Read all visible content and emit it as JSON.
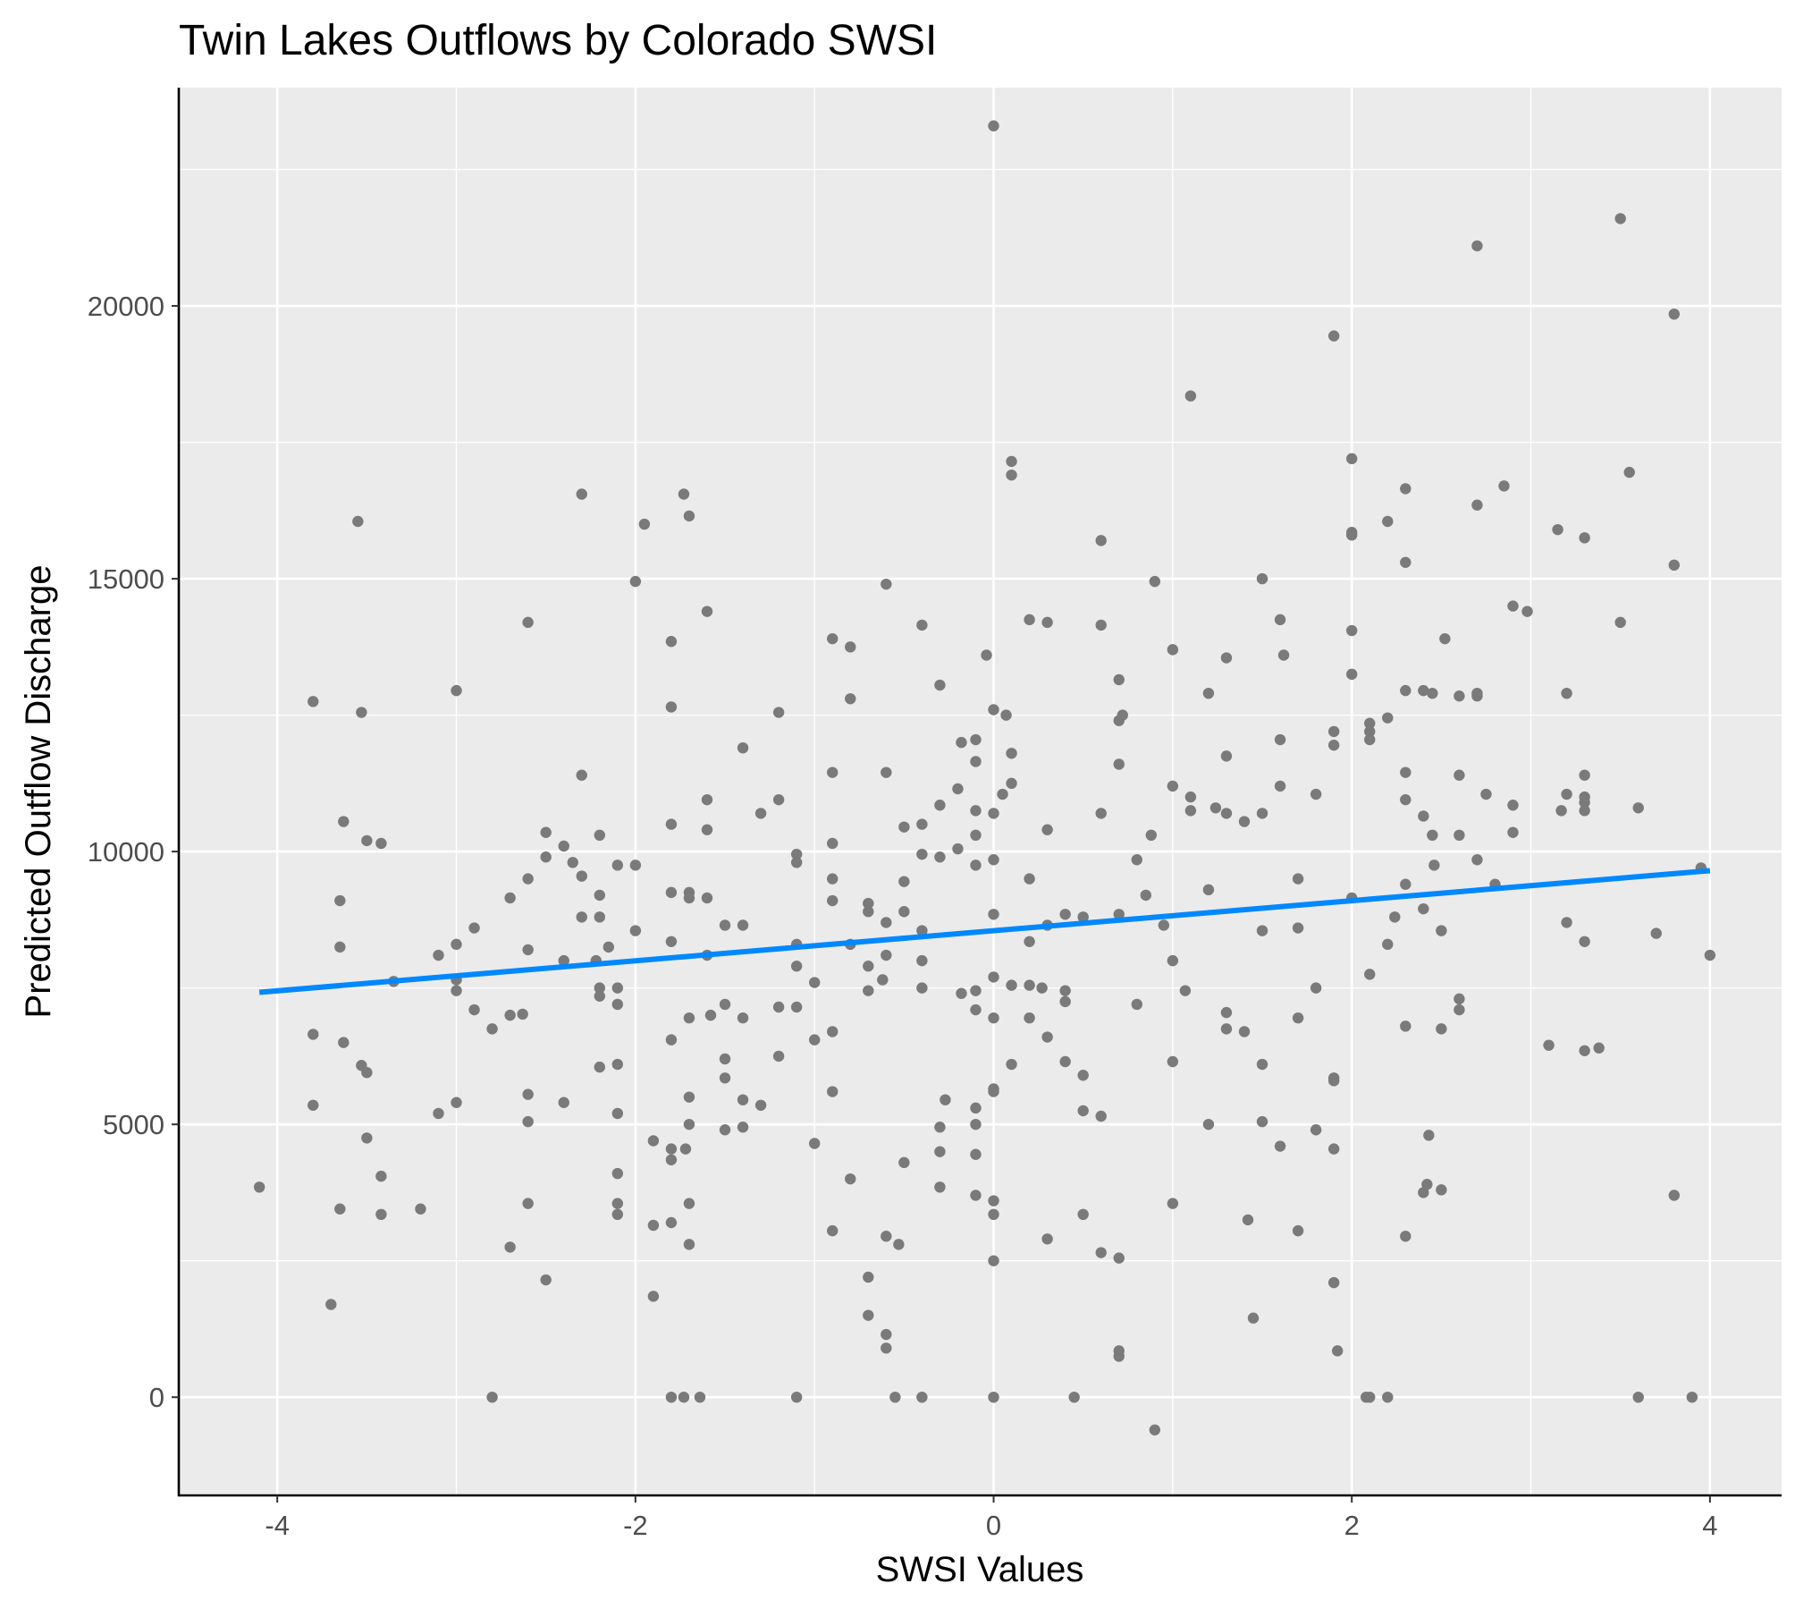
{
  "chart_data": {
    "type": "scatter",
    "title": "Twin Lakes Outflows by Colorado SWSI",
    "xlabel": "SWSI Values",
    "ylabel": "Predicted Outflow Discharge",
    "xlim": [
      -4.55,
      4.4
    ],
    "ylim": [
      -1800,
      24000
    ],
    "x_ticks": [
      -4,
      -2,
      0,
      2,
      4
    ],
    "y_ticks": [
      0,
      5000,
      10000,
      15000,
      20000
    ],
    "grid": true,
    "legend": "none",
    "colors": {
      "points": "#7a7a7a",
      "fit_line": "#0088ff",
      "panel": "#ebebeb",
      "grid": "#ffffff"
    },
    "fit_line": {
      "x": [
        -4.1,
        4.0
      ],
      "y": [
        7420,
        9650
      ]
    },
    "points": [
      [
        -4.1,
        3850
      ],
      [
        -3.8,
        12750
      ],
      [
        -3.8,
        6650
      ],
      [
        -3.8,
        5350
      ],
      [
        -3.7,
        1700
      ],
      [
        -3.65,
        9100
      ],
      [
        -3.65,
        8250
      ],
      [
        -3.63,
        6500
      ],
      [
        -3.65,
        3450
      ],
      [
        -3.55,
        16050
      ],
      [
        -3.53,
        12550
      ],
      [
        -3.53,
        6080
      ],
      [
        -3.5,
        5950
      ],
      [
        -3.5,
        4750
      ],
      [
        -3.5,
        10200
      ],
      [
        -3.63,
        10550
      ],
      [
        -3.42,
        10150
      ],
      [
        -3.42,
        4050
      ],
      [
        -3.42,
        3350
      ],
      [
        -3.35,
        7620
      ],
      [
        -3.2,
        3450
      ],
      [
        -3.1,
        8100
      ],
      [
        -3.1,
        5200
      ],
      [
        -3.0,
        12950
      ],
      [
        -3.0,
        8300
      ],
      [
        -3.0,
        7650
      ],
      [
        -3.0,
        7450
      ],
      [
        -3.0,
        5400
      ],
      [
        -2.9,
        7100
      ],
      [
        -2.9,
        8600
      ],
      [
        -2.8,
        6750
      ],
      [
        -2.8,
        0
      ],
      [
        -2.7,
        7000
      ],
      [
        -2.7,
        9150
      ],
      [
        -2.7,
        2750
      ],
      [
        -2.63,
        7020
      ],
      [
        -2.6,
        14200
      ],
      [
        -2.6,
        9500
      ],
      [
        -2.6,
        8200
      ],
      [
        -2.6,
        5550
      ],
      [
        -2.6,
        5050
      ],
      [
        -2.6,
        3550
      ],
      [
        -2.5,
        10350
      ],
      [
        -2.5,
        9900
      ],
      [
        -2.5,
        2150
      ],
      [
        -2.4,
        10100
      ],
      [
        -2.4,
        8000
      ],
      [
        -2.4,
        5400
      ],
      [
        -2.35,
        9800
      ],
      [
        -2.3,
        16550
      ],
      [
        -2.3,
        11400
      ],
      [
        -2.3,
        9550
      ],
      [
        -2.3,
        8800
      ],
      [
        -2.22,
        8000
      ],
      [
        -2.2,
        10300
      ],
      [
        -2.2,
        9200
      ],
      [
        -2.2,
        8800
      ],
      [
        -2.2,
        7500
      ],
      [
        -2.2,
        7350
      ],
      [
        -2.2,
        6050
      ],
      [
        -2.15,
        8250
      ],
      [
        -2.1,
        9750
      ],
      [
        -2.1,
        7500
      ],
      [
        -2.1,
        7200
      ],
      [
        -2.1,
        6100
      ],
      [
        -2.1,
        5200
      ],
      [
        -2.1,
        4100
      ],
      [
        -2.1,
        3550
      ],
      [
        -2.1,
        3350
      ],
      [
        -2.0,
        9750
      ],
      [
        -2.0,
        8550
      ],
      [
        -2.0,
        14950
      ],
      [
        -1.95,
        16000
      ],
      [
        -1.9,
        4700
      ],
      [
        -1.9,
        3150
      ],
      [
        -1.9,
        1850
      ],
      [
        -1.8,
        13850
      ],
      [
        -1.8,
        12650
      ],
      [
        -1.8,
        10500
      ],
      [
        -1.8,
        9250
      ],
      [
        -1.8,
        8350
      ],
      [
        -1.8,
        6550
      ],
      [
        -1.8,
        4550
      ],
      [
        -1.8,
        4350
      ],
      [
        -1.8,
        3200
      ],
      [
        -1.8,
        0
      ],
      [
        -1.73,
        16550
      ],
      [
        -1.73,
        0
      ],
      [
        -1.7,
        16150
      ],
      [
        -1.7,
        9250
      ],
      [
        -1.7,
        9150
      ],
      [
        -1.7,
        6950
      ],
      [
        -1.7,
        5500
      ],
      [
        -1.7,
        5000
      ],
      [
        -1.7,
        3550
      ],
      [
        -1.7,
        2800
      ],
      [
        -1.72,
        4550
      ],
      [
        -1.64,
        0
      ],
      [
        -1.6,
        14400
      ],
      [
        -1.6,
        10950
      ],
      [
        -1.6,
        10400
      ],
      [
        -1.6,
        9150
      ],
      [
        -1.6,
        8100
      ],
      [
        -1.58,
        7000
      ],
      [
        -1.5,
        8650
      ],
      [
        -1.5,
        7200
      ],
      [
        -1.5,
        6200
      ],
      [
        -1.5,
        5850
      ],
      [
        -1.5,
        4900
      ],
      [
        -1.4,
        11900
      ],
      [
        -1.4,
        8650
      ],
      [
        -1.4,
        6950
      ],
      [
        -1.4,
        5450
      ],
      [
        -1.4,
        4950
      ],
      [
        -1.3,
        10700
      ],
      [
        -1.3,
        5350
      ],
      [
        -1.2,
        12550
      ],
      [
        -1.2,
        10950
      ],
      [
        -1.2,
        7150
      ],
      [
        -1.2,
        6250
      ],
      [
        -1.1,
        9950
      ],
      [
        -1.1,
        9800
      ],
      [
        -1.1,
        8300
      ],
      [
        -1.1,
        7900
      ],
      [
        -1.1,
        7150
      ],
      [
        -1.1,
        0
      ],
      [
        -1.0,
        7600
      ],
      [
        -1.0,
        6550
      ],
      [
        -1.0,
        4650
      ],
      [
        -0.9,
        13900
      ],
      [
        -0.9,
        11450
      ],
      [
        -0.9,
        10150
      ],
      [
        -0.9,
        9500
      ],
      [
        -0.9,
        9100
      ],
      [
        -0.9,
        6700
      ],
      [
        -0.9,
        5600
      ],
      [
        -0.9,
        3050
      ],
      [
        -0.8,
        13750
      ],
      [
        -0.8,
        12800
      ],
      [
        -0.8,
        8300
      ],
      [
        -0.8,
        4000
      ],
      [
        -0.7,
        9050
      ],
      [
        -0.7,
        8900
      ],
      [
        -0.7,
        7900
      ],
      [
        -0.7,
        7450
      ],
      [
        -0.7,
        2200
      ],
      [
        -0.7,
        1500
      ],
      [
        -0.62,
        7650
      ],
      [
        -0.6,
        14900
      ],
      [
        -0.6,
        11450
      ],
      [
        -0.6,
        8700
      ],
      [
        -0.6,
        8100
      ],
      [
        -0.6,
        2950
      ],
      [
        -0.6,
        1150
      ],
      [
        -0.6,
        900
      ],
      [
        -0.55,
        0
      ],
      [
        -0.53,
        2800
      ],
      [
        -0.5,
        10450
      ],
      [
        -0.5,
        9450
      ],
      [
        -0.5,
        8900
      ],
      [
        -0.5,
        4300
      ],
      [
        -0.4,
        14150
      ],
      [
        -0.4,
        10500
      ],
      [
        -0.4,
        9950
      ],
      [
        -0.4,
        8550
      ],
      [
        -0.4,
        8000
      ],
      [
        -0.4,
        7500
      ],
      [
        -0.4,
        0
      ],
      [
        -0.3,
        13050
      ],
      [
        -0.3,
        10850
      ],
      [
        -0.3,
        9900
      ],
      [
        -0.3,
        4950
      ],
      [
        -0.3,
        4500
      ],
      [
        -0.3,
        3850
      ],
      [
        -0.27,
        5450
      ],
      [
        -0.2,
        11150
      ],
      [
        -0.2,
        10050
      ],
      [
        -0.18,
        7400
      ],
      [
        -0.18,
        12000
      ],
      [
        -0.1,
        12050
      ],
      [
        -0.1,
        11650
      ],
      [
        -0.1,
        10750
      ],
      [
        -0.1,
        10300
      ],
      [
        -0.1,
        9750
      ],
      [
        -0.1,
        7450
      ],
      [
        -0.1,
        7100
      ],
      [
        -0.1,
        5300
      ],
      [
        -0.1,
        5000
      ],
      [
        -0.1,
        4450
      ],
      [
        -0.1,
        3700
      ],
      [
        -0.04,
        13600
      ],
      [
        0.0,
        23300
      ],
      [
        0.0,
        12600
      ],
      [
        0.0,
        10700
      ],
      [
        0.0,
        9850
      ],
      [
        0.0,
        8850
      ],
      [
        0.0,
        7700
      ],
      [
        0.0,
        6950
      ],
      [
        0.0,
        5650
      ],
      [
        0.0,
        5600
      ],
      [
        0.0,
        3600
      ],
      [
        0.0,
        3350
      ],
      [
        0.0,
        2500
      ],
      [
        0.0,
        0
      ],
      [
        0.05,
        11050
      ],
      [
        0.07,
        12500
      ],
      [
        0.1,
        17150
      ],
      [
        0.1,
        16900
      ],
      [
        0.1,
        11800
      ],
      [
        0.1,
        11250
      ],
      [
        0.1,
        7550
      ],
      [
        0.1,
        6100
      ],
      [
        0.2,
        14250
      ],
      [
        0.2,
        9500
      ],
      [
        0.2,
        8350
      ],
      [
        0.2,
        7550
      ],
      [
        0.2,
        6950
      ],
      [
        0.27,
        7500
      ],
      [
        0.3,
        14200
      ],
      [
        0.3,
        10400
      ],
      [
        0.3,
        8650
      ],
      [
        0.3,
        6600
      ],
      [
        0.3,
        2900
      ],
      [
        0.4,
        8850
      ],
      [
        0.4,
        7450
      ],
      [
        0.4,
        7250
      ],
      [
        0.4,
        6150
      ],
      [
        0.45,
        0
      ],
      [
        0.5,
        8800
      ],
      [
        0.5,
        5900
      ],
      [
        0.5,
        5250
      ],
      [
        0.5,
        3350
      ],
      [
        0.6,
        15700
      ],
      [
        0.6,
        14150
      ],
      [
        0.6,
        10700
      ],
      [
        0.6,
        5150
      ],
      [
        0.6,
        2650
      ],
      [
        0.7,
        13150
      ],
      [
        0.7,
        12400
      ],
      [
        0.7,
        11600
      ],
      [
        0.7,
        8850
      ],
      [
        0.7,
        2550
      ],
      [
        0.7,
        850
      ],
      [
        0.7,
        750
      ],
      [
        0.72,
        12500
      ],
      [
        0.8,
        9850
      ],
      [
        0.8,
        7200
      ],
      [
        0.85,
        9200
      ],
      [
        0.88,
        10300
      ],
      [
        0.9,
        14950
      ],
      [
        0.9,
        -600
      ],
      [
        0.95,
        8650
      ],
      [
        1.0,
        13700
      ],
      [
        1.0,
        11200
      ],
      [
        1.0,
        8000
      ],
      [
        1.0,
        6150
      ],
      [
        1.0,
        3550
      ],
      [
        1.07,
        7450
      ],
      [
        1.1,
        18350
      ],
      [
        1.1,
        11000
      ],
      [
        1.1,
        10750
      ],
      [
        1.2,
        12900
      ],
      [
        1.2,
        9300
      ],
      [
        1.2,
        5000
      ],
      [
        1.24,
        10800
      ],
      [
        1.3,
        13550
      ],
      [
        1.3,
        11750
      ],
      [
        1.3,
        10700
      ],
      [
        1.3,
        7050
      ],
      [
        1.3,
        6750
      ],
      [
        1.4,
        10550
      ],
      [
        1.4,
        6700
      ],
      [
        1.42,
        3250
      ],
      [
        1.45,
        1450
      ],
      [
        1.5,
        15000
      ],
      [
        1.5,
        10700
      ],
      [
        1.5,
        8550
      ],
      [
        1.5,
        6100
      ],
      [
        1.5,
        5050
      ],
      [
        1.6,
        14250
      ],
      [
        1.6,
        12050
      ],
      [
        1.6,
        11200
      ],
      [
        1.6,
        4600
      ],
      [
        1.62,
        13600
      ],
      [
        1.7,
        9500
      ],
      [
        1.7,
        8600
      ],
      [
        1.7,
        6950
      ],
      [
        1.7,
        3050
      ],
      [
        1.8,
        11050
      ],
      [
        1.8,
        7500
      ],
      [
        1.8,
        4900
      ],
      [
        1.9,
        19450
      ],
      [
        1.9,
        12200
      ],
      [
        1.9,
        11950
      ],
      [
        1.9,
        5850
      ],
      [
        1.9,
        5800
      ],
      [
        1.9,
        4550
      ],
      [
        1.9,
        2100
      ],
      [
        1.92,
        850
      ],
      [
        2.0,
        17200
      ],
      [
        2.0,
        15850
      ],
      [
        2.0,
        15800
      ],
      [
        2.0,
        14050
      ],
      [
        2.0,
        13250
      ],
      [
        2.0,
        9150
      ],
      [
        2.1,
        12350
      ],
      [
        2.1,
        12200
      ],
      [
        2.1,
        12050
      ],
      [
        2.1,
        7750
      ],
      [
        2.08,
        0
      ],
      [
        2.1,
        0
      ],
      [
        2.2,
        16050
      ],
      [
        2.2,
        12450
      ],
      [
        2.2,
        8300
      ],
      [
        2.2,
        0
      ],
      [
        2.24,
        8800
      ],
      [
        2.3,
        16650
      ],
      [
        2.3,
        15300
      ],
      [
        2.3,
        12950
      ],
      [
        2.3,
        11450
      ],
      [
        2.3,
        10950
      ],
      [
        2.3,
        9400
      ],
      [
        2.3,
        6800
      ],
      [
        2.3,
        2950
      ],
      [
        2.4,
        12950
      ],
      [
        2.4,
        10650
      ],
      [
        2.4,
        8950
      ],
      [
        2.4,
        3750
      ],
      [
        2.42,
        3900
      ],
      [
        2.43,
        4800
      ],
      [
        2.45,
        12900
      ],
      [
        2.45,
        10300
      ],
      [
        2.46,
        9750
      ],
      [
        2.5,
        8550
      ],
      [
        2.5,
        6750
      ],
      [
        2.5,
        3800
      ],
      [
        2.52,
        13900
      ],
      [
        2.6,
        12850
      ],
      [
        2.6,
        11400
      ],
      [
        2.6,
        10300
      ],
      [
        2.6,
        7300
      ],
      [
        2.6,
        7100
      ],
      [
        2.7,
        21100
      ],
      [
        2.7,
        16350
      ],
      [
        2.7,
        12900
      ],
      [
        2.7,
        12850
      ],
      [
        2.7,
        9850
      ],
      [
        2.75,
        11050
      ],
      [
        2.8,
        9400
      ],
      [
        2.85,
        16700
      ],
      [
        2.9,
        14500
      ],
      [
        2.9,
        10850
      ],
      [
        2.9,
        10350
      ],
      [
        2.98,
        14400
      ],
      [
        3.1,
        6450
      ],
      [
        3.15,
        15900
      ],
      [
        3.17,
        10750
      ],
      [
        3.2,
        12900
      ],
      [
        3.2,
        11050
      ],
      [
        3.2,
        8700
      ],
      [
        3.3,
        15750
      ],
      [
        3.3,
        11400
      ],
      [
        3.3,
        11000
      ],
      [
        3.3,
        10900
      ],
      [
        3.3,
        10750
      ],
      [
        3.3,
        8350
      ],
      [
        3.3,
        6350
      ],
      [
        3.38,
        6400
      ],
      [
        3.5,
        21600
      ],
      [
        3.5,
        14200
      ],
      [
        3.55,
        16950
      ],
      [
        3.6,
        10800
      ],
      [
        3.6,
        0
      ],
      [
        3.7,
        8500
      ],
      [
        3.8,
        19850
      ],
      [
        3.8,
        15250
      ],
      [
        3.8,
        3700
      ],
      [
        3.9,
        0
      ],
      [
        3.95,
        9700
      ],
      [
        4.0,
        8100
      ]
    ]
  }
}
